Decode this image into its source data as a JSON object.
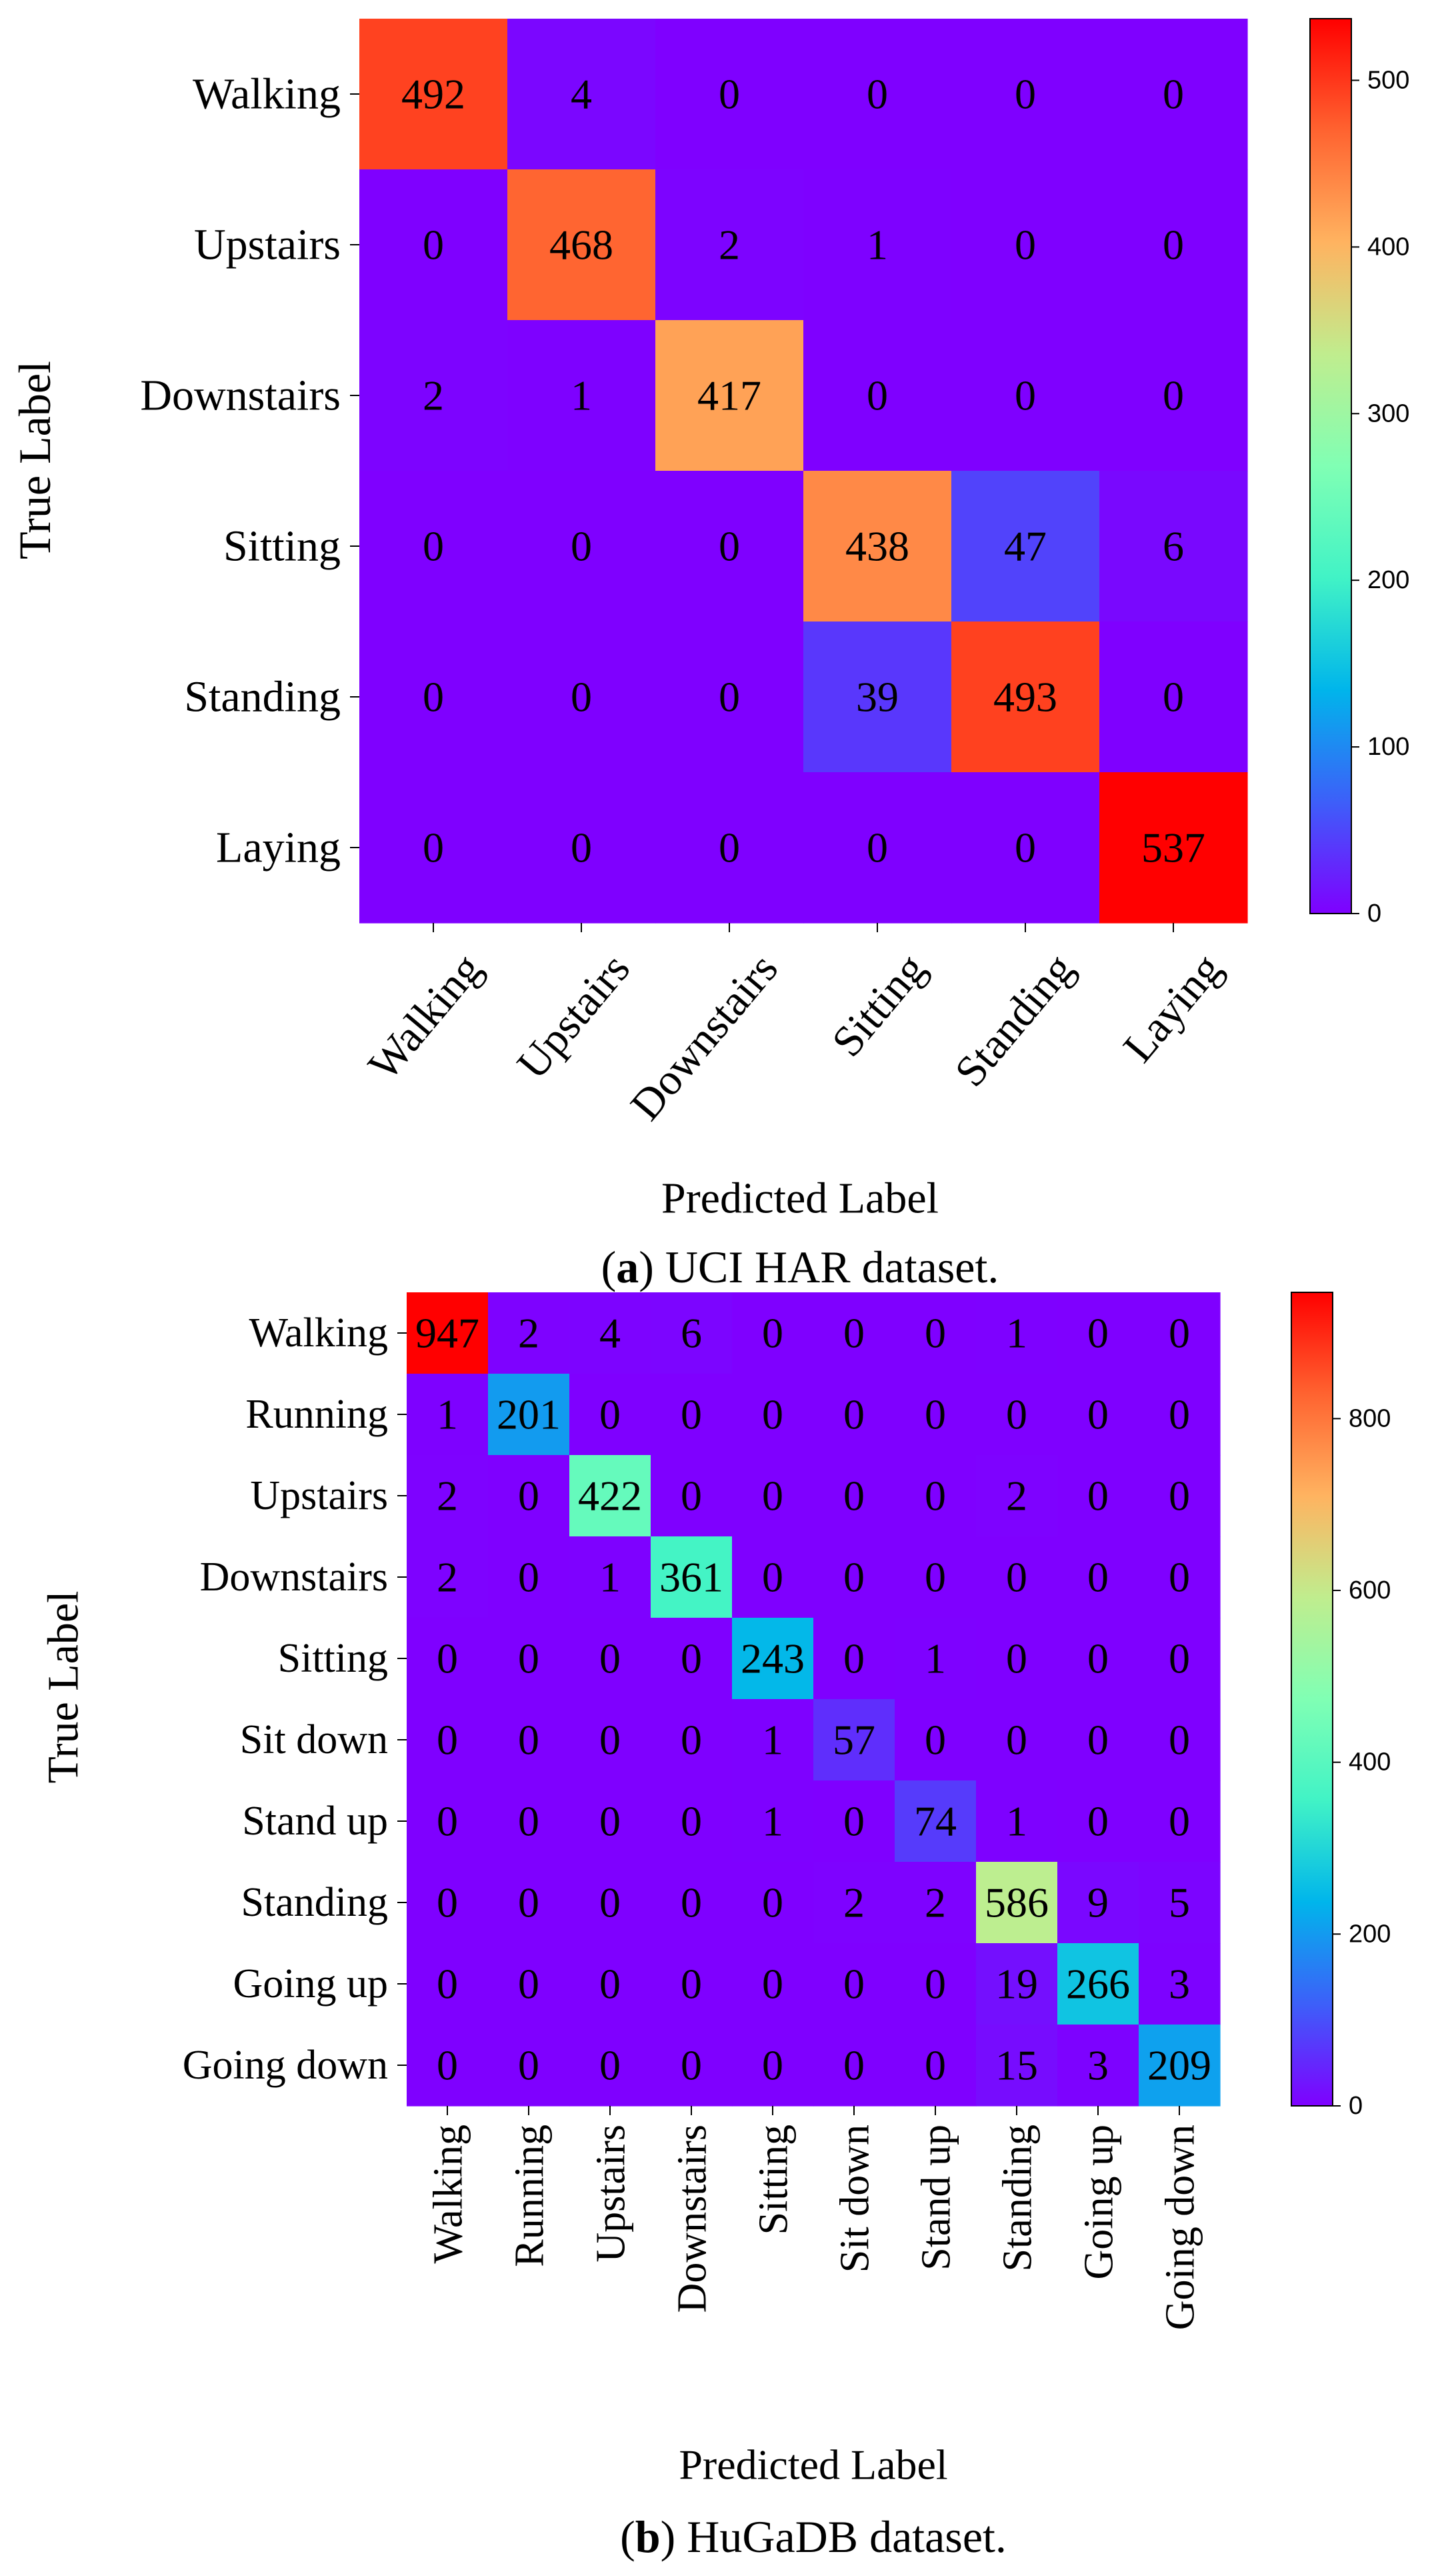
{
  "colors": {
    "colormap": [
      "#7f00ff",
      "#3d5ff9",
      "#00b5eb",
      "#41f3c6",
      "#80ffb4",
      "#c0ed8e",
      "#ffb360",
      "#ff6330",
      "#ff0000"
    ],
    "text": "#000000"
  },
  "chart_data": [
    {
      "type": "heatmap",
      "caption_letter": "a",
      "caption_rest": ") UCI HAR dataset.",
      "caption_open": "(",
      "xlabel": "Predicted Label",
      "ylabel": "True Label",
      "categories": [
        "Walking",
        "Upstairs",
        "Downstairs",
        "Sitting",
        "Standing",
        "Laying"
      ],
      "matrix": [
        [
          492,
          4,
          0,
          0,
          0,
          0
        ],
        [
          0,
          468,
          2,
          1,
          0,
          0
        ],
        [
          2,
          1,
          417,
          0,
          0,
          0
        ],
        [
          0,
          0,
          0,
          438,
          47,
          6
        ],
        [
          0,
          0,
          0,
          39,
          493,
          0
        ],
        [
          0,
          0,
          0,
          0,
          0,
          537
        ]
      ],
      "vmin": 0,
      "vmax": 537,
      "colorbar_ticks": [
        0,
        100,
        200,
        300,
        400,
        500
      ]
    },
    {
      "type": "heatmap",
      "caption_letter": "b",
      "caption_rest": ") HuGaDB dataset.",
      "caption_open": "(",
      "xlabel": "Predicted Label",
      "ylabel": "True Label",
      "categories": [
        "Walking",
        "Running",
        "Upstairs",
        "Downstairs",
        "Sitting",
        "Sit down",
        "Stand up",
        "Standing",
        "Going up",
        "Going down"
      ],
      "matrix": [
        [
          947,
          2,
          4,
          6,
          0,
          0,
          0,
          1,
          0,
          0
        ],
        [
          1,
          201,
          0,
          0,
          0,
          0,
          0,
          0,
          0,
          0
        ],
        [
          2,
          0,
          422,
          0,
          0,
          0,
          0,
          2,
          0,
          0
        ],
        [
          2,
          0,
          1,
          361,
          0,
          0,
          0,
          0,
          0,
          0
        ],
        [
          0,
          0,
          0,
          0,
          243,
          0,
          1,
          0,
          0,
          0
        ],
        [
          0,
          0,
          0,
          0,
          1,
          57,
          0,
          0,
          0,
          0
        ],
        [
          0,
          0,
          0,
          0,
          1,
          0,
          74,
          1,
          0,
          0
        ],
        [
          0,
          0,
          0,
          0,
          0,
          2,
          2,
          586,
          9,
          5
        ],
        [
          0,
          0,
          0,
          0,
          0,
          0,
          0,
          19,
          266,
          3
        ],
        [
          0,
          0,
          0,
          0,
          0,
          0,
          0,
          15,
          3,
          209
        ]
      ],
      "vmin": 0,
      "vmax": 947,
      "colorbar_ticks": [
        0,
        200,
        400,
        600,
        800
      ]
    }
  ]
}
